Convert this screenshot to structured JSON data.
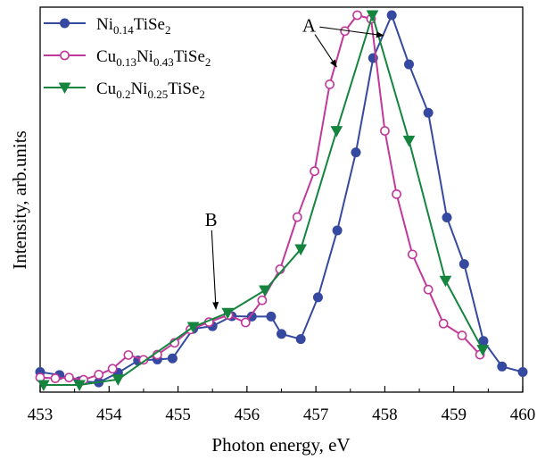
{
  "chart_data": {
    "type": "line",
    "title": "",
    "xlabel": "Photon energy, eV",
    "ylabel": "Intensity, arb.units",
    "xlim": [
      453,
      460
    ],
    "ylim": [
      0,
      1
    ],
    "y_ticks_shown": false,
    "x_ticks": [
      {
        "value": 453,
        "label": "453"
      },
      {
        "value": 454,
        "label": "454"
      },
      {
        "value": 455,
        "label": "455"
      },
      {
        "value": 456,
        "label": "456"
      },
      {
        "value": 457,
        "label": "457"
      },
      {
        "value": 458,
        "label": "458"
      },
      {
        "value": 459,
        "label": "459"
      },
      {
        "value": 460,
        "label": "460"
      }
    ],
    "grid": false,
    "legend_position": "top-left",
    "series": [
      {
        "name": "Ni0.14TiSe2",
        "legend": {
          "base": "Ni",
          "sub1": "0.14",
          "mid": "TiSe",
          "sub2": "2"
        },
        "color": "#3549a0",
        "marker": "filled-circle",
        "x": [
          453.0,
          453.28,
          453.57,
          453.85,
          454.13,
          454.42,
          454.7,
          454.92,
          455.22,
          455.5,
          455.78,
          456.07,
          456.35,
          456.5,
          456.78,
          457.03,
          457.31,
          457.58,
          457.83,
          458.1,
          458.35,
          458.63,
          458.9,
          459.15,
          459.43,
          459.7,
          460.0
        ],
        "y": [
          0.035,
          0.027,
          0.01,
          0.007,
          0.033,
          0.066,
          0.069,
          0.072,
          0.152,
          0.159,
          0.186,
          0.185,
          0.185,
          0.138,
          0.124,
          0.237,
          0.418,
          0.629,
          0.884,
          1.0,
          0.867,
          0.736,
          0.453,
          0.327,
          0.119,
          0.05,
          0.035
        ]
      },
      {
        "name": "Cu0.13Ni0.43TiSe2",
        "legend": {
          "base": "Cu",
          "sub1": "0.13",
          "mid": "Ni",
          "sub2": "0.43",
          "tail": "TiSe",
          "sub3": "2"
        },
        "color": "#c0399a",
        "marker": "open-circle",
        "x": [
          453.0,
          453.22,
          453.42,
          453.63,
          453.85,
          454.05,
          454.28,
          454.5,
          454.7,
          454.95,
          455.18,
          455.45,
          455.73,
          455.98,
          456.22,
          456.48,
          456.73,
          456.98,
          457.2,
          457.42,
          457.6,
          457.8,
          458.0,
          458.17,
          458.4,
          458.63,
          458.85,
          459.12,
          459.38
        ],
        "y": [
          0.02,
          0.018,
          0.02,
          0.014,
          0.028,
          0.044,
          0.081,
          0.068,
          0.082,
          0.114,
          0.15,
          0.17,
          0.189,
          0.169,
          0.229,
          0.313,
          0.454,
          0.578,
          0.813,
          0.957,
          1.0,
          0.99,
          0.687,
          0.516,
          0.353,
          0.258,
          0.166,
          0.134,
          0.082
        ]
      },
      {
        "name": "Cu0.2Ni0.25TiSe2",
        "legend": {
          "base": "Cu",
          "sub1": "0.2",
          "mid": "Ni",
          "sub2": "0.25",
          "tail": "TiSe",
          "sub3": "2"
        },
        "color": "#14843e",
        "marker": "filled-triangle-down",
        "x": [
          453.05,
          453.57,
          454.13,
          455.22,
          455.72,
          456.26,
          456.78,
          457.3,
          457.82,
          458.35,
          458.88,
          459.42
        ],
        "y": [
          0.0,
          0.0,
          0.015,
          0.157,
          0.195,
          0.256,
          0.367,
          0.687,
          1.0,
          0.661,
          0.282,
          0.095
        ]
      }
    ],
    "annotations": [
      {
        "label": "A",
        "text_x": 456.9,
        "text_y": 0.955,
        "arrows": [
          {
            "to_x": 457.98,
            "to_y": 0.945
          },
          {
            "to_x": 457.3,
            "to_y": 0.86
          }
        ]
      },
      {
        "label": "B",
        "text_x": 455.48,
        "text_y": 0.43,
        "arrows": [
          {
            "to_x": 455.55,
            "to_y": 0.205
          }
        ]
      }
    ]
  }
}
